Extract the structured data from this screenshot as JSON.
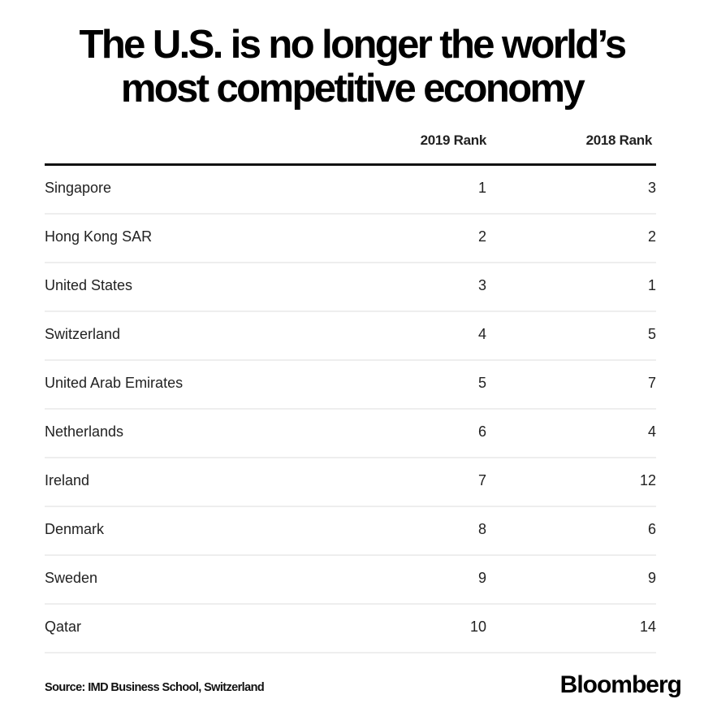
{
  "chart_data": {
    "type": "table",
    "title": "The U.S. is no longer the world’s most competitive economy",
    "columns": [
      "",
      "2019 Rank",
      "2018 Rank"
    ],
    "rows": [
      {
        "country": "Singapore",
        "rank_2019": "1",
        "rank_2018": "3"
      },
      {
        "country": "Hong Kong SAR",
        "rank_2019": "2",
        "rank_2018": "2"
      },
      {
        "country": "United States",
        "rank_2019": "3",
        "rank_2018": "1"
      },
      {
        "country": "Switzerland",
        "rank_2019": "4",
        "rank_2018": "5"
      },
      {
        "country": "United Arab Emirates",
        "rank_2019": "5",
        "rank_2018": "7"
      },
      {
        "country": "Netherlands",
        "rank_2019": "6",
        "rank_2018": "4"
      },
      {
        "country": "Ireland",
        "rank_2019": "7",
        "rank_2018": "12"
      },
      {
        "country": "Denmark",
        "rank_2019": "8",
        "rank_2018": "6"
      },
      {
        "country": "Sweden",
        "rank_2019": "9",
        "rank_2018": "9"
      },
      {
        "country": "Qatar",
        "rank_2019": "10",
        "rank_2018": "14"
      }
    ],
    "source": "Source: IMD Business School, Switzerland",
    "brand": "Bloomberg"
  },
  "header": {
    "title_line1": "The U.S. is no longer the world’s",
    "title_line2": "most competitive economy",
    "col_2019": "2019 Rank",
    "col_2018": "2018 Rank"
  },
  "footer": {
    "source": "Source: IMD Business School, Switzerland",
    "brand": "Bloomberg"
  }
}
